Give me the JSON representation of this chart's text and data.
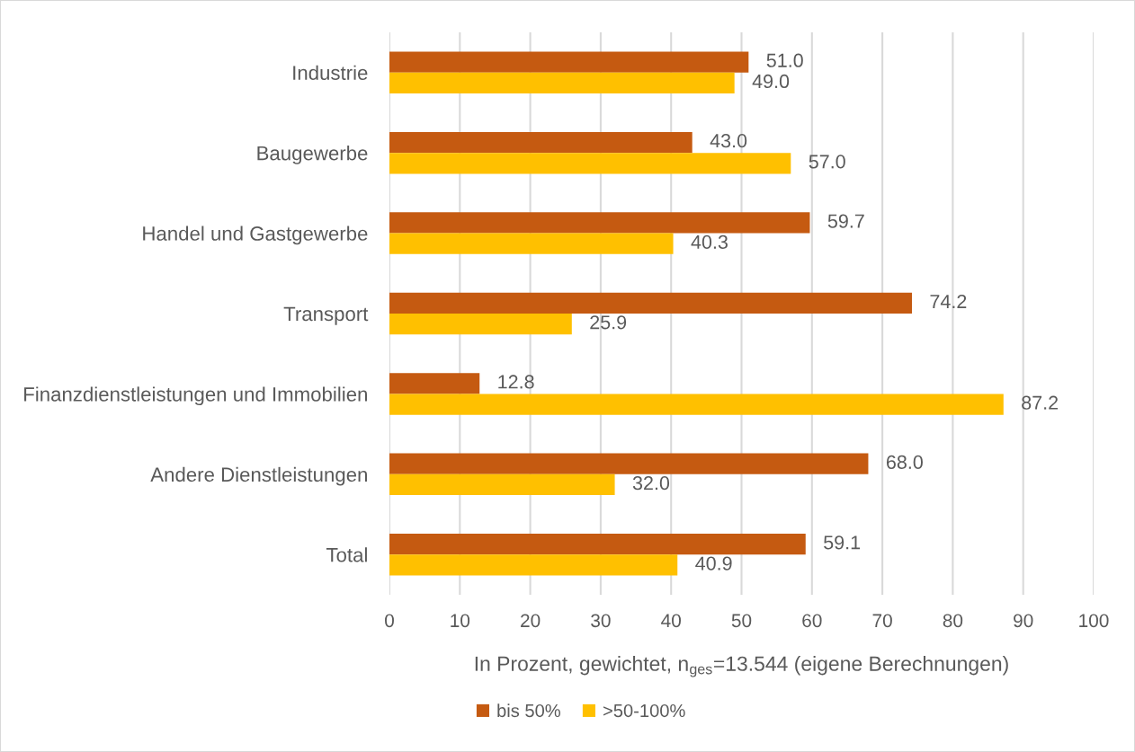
{
  "chart_data": {
    "type": "bar",
    "orientation": "horizontal",
    "categories": [
      "Industrie",
      "Baugewerbe",
      "Handel und Gastgewerbe",
      "Transport",
      "Finanzdienstleistungen und Immobilien",
      "Andere Dienstleistungen",
      "Total"
    ],
    "series": [
      {
        "name": "bis 50%",
        "color": "#c55a11",
        "values": [
          51.0,
          43.0,
          59.7,
          74.2,
          12.8,
          68.0,
          59.1
        ],
        "value_labels": [
          "51.0",
          "43.0",
          "59.7",
          "74.2",
          "12.8",
          "68.0",
          "59.1"
        ]
      },
      {
        "name": ">50-100%",
        "color": "#ffc000",
        "values": [
          49.0,
          57.0,
          40.3,
          25.9,
          87.2,
          32.0,
          40.9
        ],
        "value_labels": [
          "49.0",
          "57.0",
          "40.3",
          "25.9",
          "87.2",
          "32.0",
          "40.9"
        ]
      }
    ],
    "xlim": [
      0,
      100
    ],
    "xticks": [
      0,
      10,
      20,
      30,
      40,
      50,
      60,
      70,
      80,
      90,
      100
    ],
    "xlabel": "In Prozent, gewichtet, n$_{ges}$=13.544 (eigene Berechnungen)",
    "grid": "x",
    "legend": "bottom"
  }
}
